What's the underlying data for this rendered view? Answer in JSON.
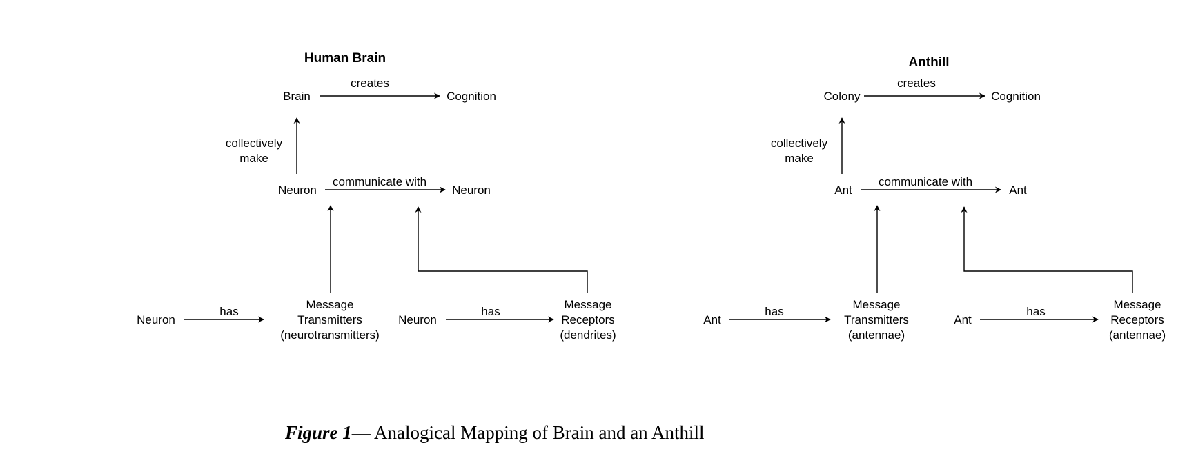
{
  "brain": {
    "title": "Human Brain",
    "top": {
      "from": "Brain",
      "relation": "creates",
      "to": "Cognition"
    },
    "collective": [
      "collectively",
      "make"
    ],
    "middle": {
      "from": "Neuron",
      "relation": "communicate with",
      "to": "Neuron"
    },
    "bottom_left": {
      "from": "Neuron",
      "relation": "has",
      "to": [
        "Message",
        "Transmitters",
        "(neurotransmitters)"
      ]
    },
    "bottom_right": {
      "from": "Neuron",
      "relation": "has",
      "to": [
        "Message",
        "Receptors",
        "(dendrites)"
      ]
    }
  },
  "anthill": {
    "title": "Anthill",
    "top": {
      "from": "Colony",
      "relation": "creates",
      "to": "Cognition"
    },
    "collective": [
      "collectively",
      "make"
    ],
    "middle": {
      "from": "Ant",
      "relation": "communicate with",
      "to": "Ant"
    },
    "bottom_left": {
      "from": "Ant",
      "relation": "has",
      "to": [
        "Message",
        "Transmitters",
        "(antennae)"
      ]
    },
    "bottom_right": {
      "from": "Ant",
      "relation": "has",
      "to": [
        "Message",
        "Receptors",
        "(antennae)"
      ]
    }
  },
  "caption": {
    "label": "Figure 1",
    "text": "— Analogical Mapping of Brain and an Anthill"
  }
}
